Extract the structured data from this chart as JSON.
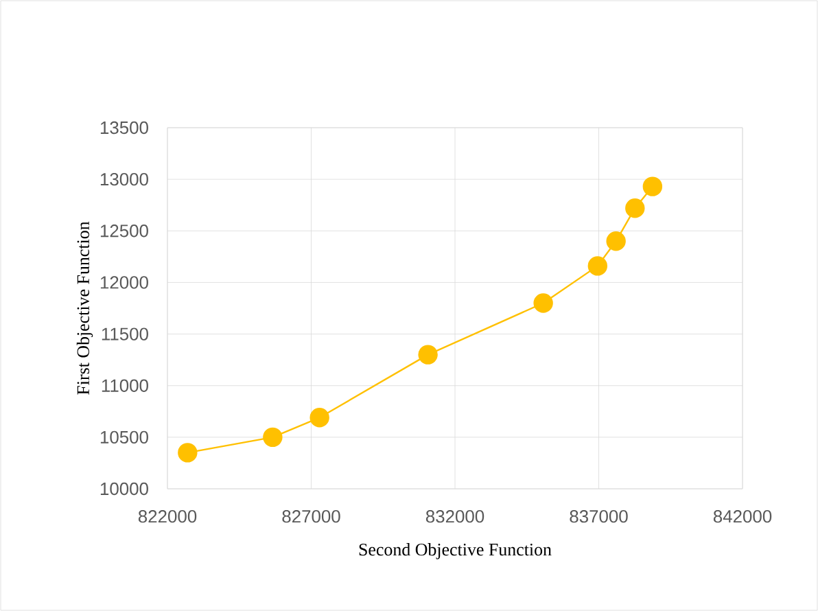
{
  "chart_data": {
    "type": "line",
    "xlabel": "Second Objective Function",
    "ylabel": "First Objective Function",
    "x": [
      822700,
      825660,
      827290,
      831060,
      835070,
      836960,
      837600,
      838260,
      838870
    ],
    "series": [
      {
        "color": "#ffc000",
        "values": [
          10350,
          10500,
          10690,
          11300,
          11800,
          12160,
          12400,
          12720,
          12930
        ]
      }
    ],
    "xlim": [
      822000,
      842000
    ],
    "xticks": [
      822000,
      827000,
      832000,
      837000,
      842000
    ],
    "ylim": [
      10000,
      13500
    ],
    "yticks": [
      10000,
      10500,
      11000,
      11500,
      12000,
      12500,
      13000,
      13500
    ],
    "grid": true,
    "marker": "circle",
    "line_style": "solid"
  }
}
